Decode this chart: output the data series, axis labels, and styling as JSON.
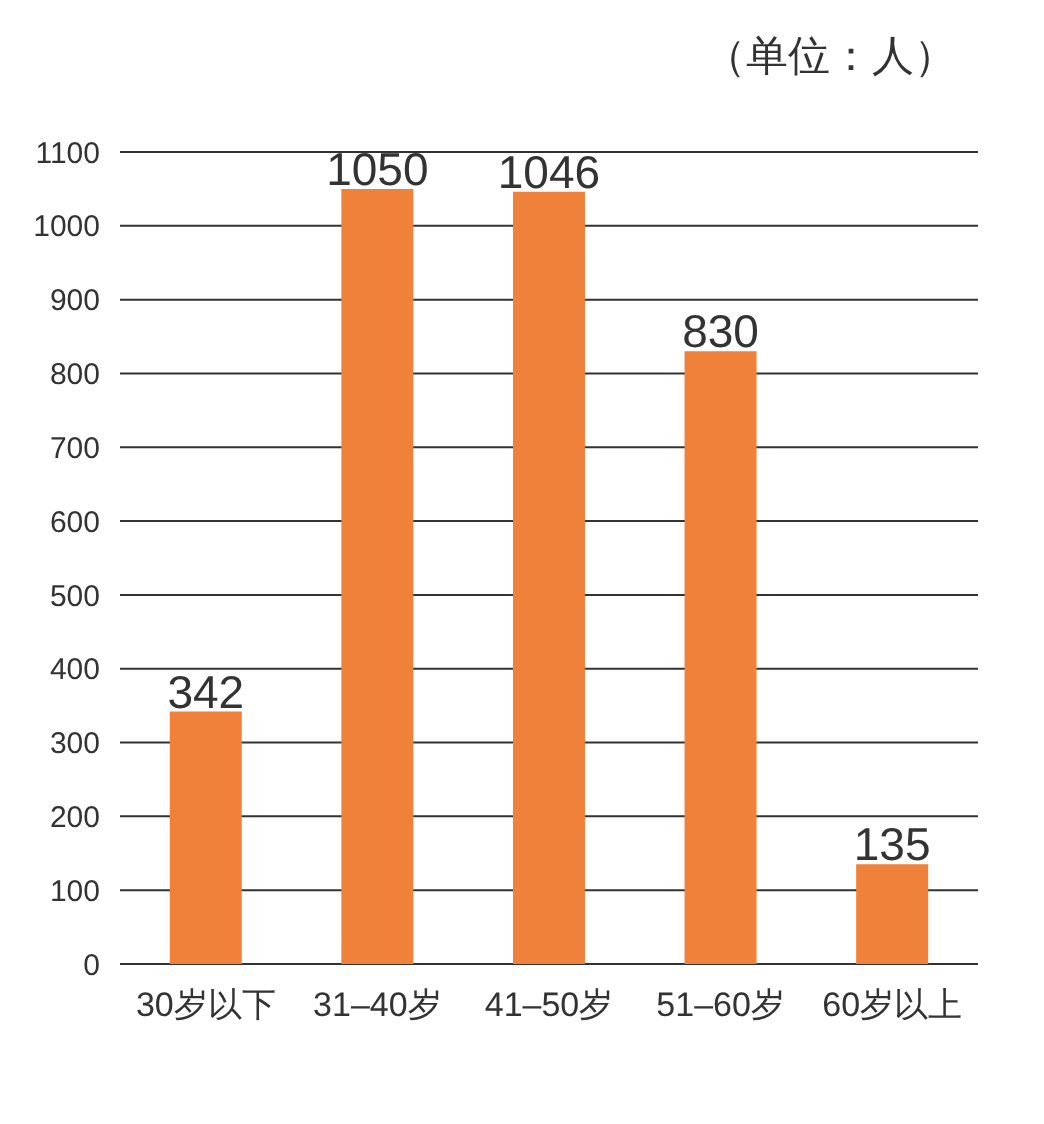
{
  "chart_data": {
    "type": "bar",
    "annotations": [
      "（单位：人）"
    ],
    "categories": [
      "30岁以下",
      "31–40岁",
      "41–50岁",
      "51–60岁",
      "60岁以上"
    ],
    "values": [
      342,
      1050,
      1046,
      830,
      135
    ],
    "color": "#f0813a",
    "ylim": [
      0,
      1100
    ],
    "yticks": [
      0,
      100,
      200,
      300,
      400,
      500,
      600,
      700,
      800,
      900,
      1000,
      1100
    ],
    "grid": "y",
    "data_labels": true
  }
}
